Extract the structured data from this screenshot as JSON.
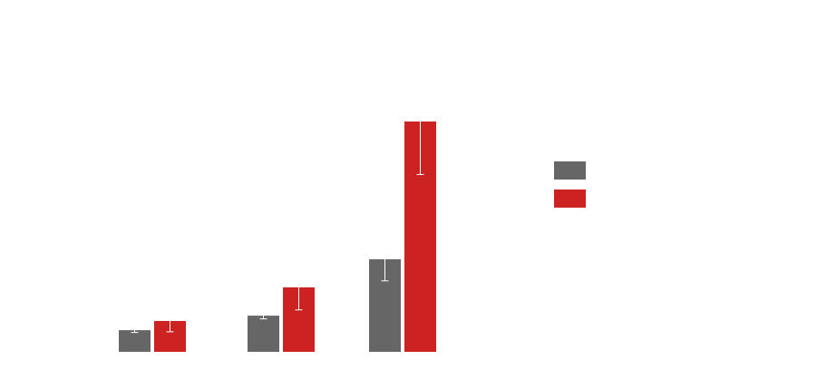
{
  "chart_data": {
    "type": "bar",
    "title": "",
    "xlabel": "",
    "ylabel": "",
    "ylim": [
      0,
      100
    ],
    "grid": false,
    "legend_position": "right",
    "categories": [
      "",
      "",
      ""
    ],
    "series": [
      {
        "color": "#666666",
        "values": [
          9.4,
          15.7,
          40.2
        ],
        "error": [
          1.0,
          1.4,
          9.4
        ]
      },
      {
        "color": "#cc2222",
        "values": [
          13.4,
          28.0,
          100.0
        ],
        "error": [
          4.7,
          9.8,
          23.0
        ]
      }
    ]
  }
}
